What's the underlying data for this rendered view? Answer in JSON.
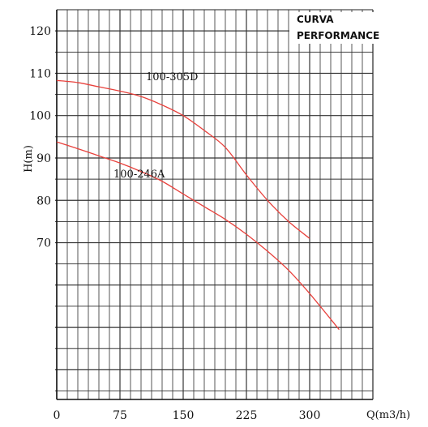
{
  "chart_data": {
    "type": "line",
    "title_lines": [
      "CURVA",
      "PERFORMANCE"
    ],
    "xlabel": "Q(m3/h)",
    "ylabel": "H(m)",
    "xlim": [
      0,
      375
    ],
    "ylim": [
      33,
      125
    ],
    "x_ticks": [
      0,
      75,
      150,
      225,
      300
    ],
    "y_ticks": [
      70,
      80,
      90,
      100,
      110,
      120
    ],
    "grid": true,
    "series": [
      {
        "name": "100-305D",
        "color": "#e8413c",
        "x": [
          0,
          25,
          50,
          75,
          100,
          125,
          150,
          175,
          200,
          225,
          250,
          275,
          300
        ],
        "y": [
          108.3,
          107.8,
          106.8,
          105.8,
          104.5,
          102.5,
          100,
          96.5,
          92.5,
          86,
          80,
          75,
          71
        ]
      },
      {
        "name": "100-246A",
        "color": "#e8413c",
        "x": [
          0,
          25,
          50,
          75,
          100,
          125,
          150,
          175,
          200,
          225,
          250,
          275,
          300,
          335
        ],
        "y": [
          93.8,
          92.2,
          90.5,
          88.8,
          86.8,
          84.5,
          81.5,
          78.5,
          75.5,
          72,
          68,
          63.5,
          58,
          49.5
        ]
      }
    ]
  }
}
